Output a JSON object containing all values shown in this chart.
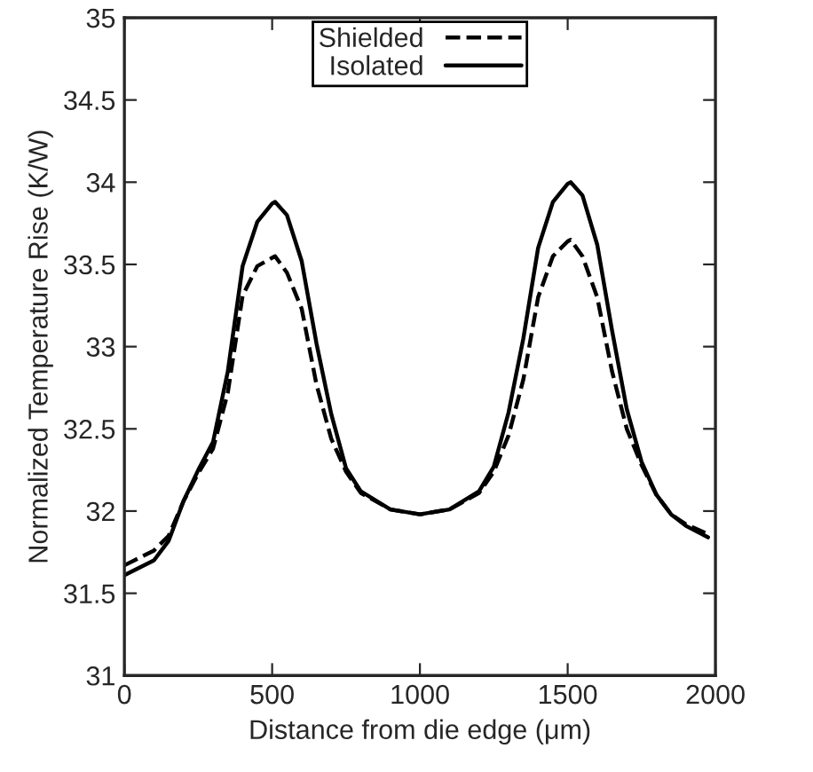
{
  "chart_data": {
    "type": "line",
    "xlabel": "Distance from die edge (μm)",
    "ylabel": "Normalized Temperature Rise (K/W)",
    "xlim": [
      0,
      2000
    ],
    "ylim": [
      31,
      35
    ],
    "xticks": [
      0,
      500,
      1000,
      1500,
      2000
    ],
    "yticks": [
      31,
      31.5,
      32,
      32.5,
      33,
      33.5,
      34,
      34.5,
      35
    ],
    "legend": "top",
    "grid": false,
    "marker": "none",
    "series": [
      {
        "name": "Shielded",
        "color": "#000000",
        "line_style": "dashed",
        "x": [
          0,
          100,
          150,
          200,
          250,
          300,
          350,
          400,
          450,
          500,
          510,
          550,
          600,
          650,
          700,
          750,
          800,
          900,
          1000,
          1100,
          1200,
          1250,
          1300,
          1350,
          1400,
          1450,
          1500,
          1510,
          1550,
          1600,
          1650,
          1700,
          1750,
          1800,
          1850,
          1900,
          1975
        ],
        "values": [
          31.67,
          31.76,
          31.85,
          32.06,
          32.23,
          32.38,
          32.72,
          33.31,
          33.49,
          33.54,
          33.55,
          33.45,
          33.23,
          32.77,
          32.44,
          32.24,
          32.11,
          32.01,
          31.98,
          32.01,
          32.11,
          32.24,
          32.46,
          32.8,
          33.3,
          33.55,
          33.64,
          33.65,
          33.55,
          33.3,
          32.85,
          32.5,
          32.28,
          32.1,
          31.98,
          31.92,
          31.86
        ]
      },
      {
        "name": "Isolated",
        "color": "#000000",
        "line_style": "solid",
        "x": [
          0,
          100,
          150,
          200,
          250,
          300,
          350,
          400,
          450,
          500,
          510,
          550,
          600,
          650,
          700,
          750,
          800,
          900,
          1000,
          1100,
          1200,
          1250,
          1300,
          1350,
          1400,
          1450,
          1500,
          1510,
          1550,
          1600,
          1650,
          1700,
          1750,
          1800,
          1850,
          1900,
          1975
        ],
        "values": [
          31.61,
          31.7,
          31.82,
          32.06,
          32.25,
          32.42,
          32.85,
          33.49,
          33.76,
          33.87,
          33.88,
          33.8,
          33.52,
          33.02,
          32.59,
          32.26,
          32.12,
          32.01,
          31.98,
          32.01,
          32.12,
          32.27,
          32.6,
          33.05,
          33.6,
          33.88,
          33.99,
          34.0,
          33.92,
          33.62,
          33.1,
          32.62,
          32.3,
          32.1,
          31.98,
          31.91,
          31.84
        ]
      }
    ]
  }
}
